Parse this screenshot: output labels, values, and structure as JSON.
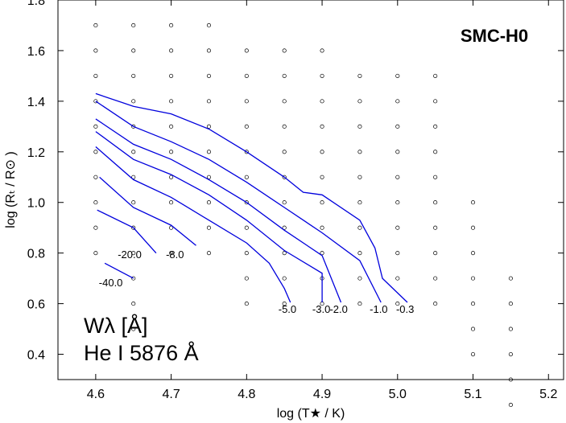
{
  "chart_data": {
    "type": "line",
    "title": "SMC-H0",
    "xlabel": "log (T★ / K)",
    "ylabel": "log (Rₜ / R⊙ )",
    "xlim": [
      4.55,
      5.22
    ],
    "ylim": [
      0.3,
      1.8
    ],
    "xticks": [
      "4.6",
      "4.7",
      "4.8",
      "4.9",
      "5.0",
      "5.1",
      "5.2"
    ],
    "yticks": [
      "0.4",
      "0.6",
      "0.8",
      "1.0",
      "1.2",
      "1.4",
      "1.6",
      "1.8"
    ],
    "legend_line1": "Wλ  [Å]",
    "legend_line2": "He I 5876 Å",
    "grid_points": [
      [
        4.6,
        1.7
      ],
      [
        4.65,
        1.7
      ],
      [
        4.7,
        1.7
      ],
      [
        4.75,
        1.7
      ],
      [
        4.6,
        1.6
      ],
      [
        4.65,
        1.6
      ],
      [
        4.7,
        1.6
      ],
      [
        4.75,
        1.6
      ],
      [
        4.8,
        1.6
      ],
      [
        4.85,
        1.6
      ],
      [
        4.9,
        1.6
      ],
      [
        4.6,
        1.5
      ],
      [
        4.65,
        1.5
      ],
      [
        4.7,
        1.5
      ],
      [
        4.75,
        1.5
      ],
      [
        4.8,
        1.5
      ],
      [
        4.85,
        1.5
      ],
      [
        4.9,
        1.5
      ],
      [
        4.95,
        1.5
      ],
      [
        5.0,
        1.5
      ],
      [
        5.05,
        1.5
      ],
      [
        4.6,
        1.4
      ],
      [
        4.65,
        1.4
      ],
      [
        4.7,
        1.4
      ],
      [
        4.75,
        1.4
      ],
      [
        4.8,
        1.4
      ],
      [
        4.85,
        1.4
      ],
      [
        4.9,
        1.4
      ],
      [
        4.95,
        1.4
      ],
      [
        5.0,
        1.4
      ],
      [
        5.05,
        1.4
      ],
      [
        4.6,
        1.3
      ],
      [
        4.65,
        1.3
      ],
      [
        4.7,
        1.3
      ],
      [
        4.75,
        1.3
      ],
      [
        4.8,
        1.3
      ],
      [
        4.85,
        1.3
      ],
      [
        4.9,
        1.3
      ],
      [
        4.95,
        1.3
      ],
      [
        5.0,
        1.3
      ],
      [
        5.05,
        1.3
      ],
      [
        4.6,
        1.2
      ],
      [
        4.65,
        1.2
      ],
      [
        4.7,
        1.2
      ],
      [
        4.75,
        1.2
      ],
      [
        4.8,
        1.2
      ],
      [
        4.85,
        1.2
      ],
      [
        4.9,
        1.2
      ],
      [
        4.95,
        1.2
      ],
      [
        5.0,
        1.2
      ],
      [
        5.05,
        1.2
      ],
      [
        4.6,
        1.1
      ],
      [
        4.65,
        1.1
      ],
      [
        4.7,
        1.1
      ],
      [
        4.75,
        1.1
      ],
      [
        4.8,
        1.1
      ],
      [
        4.85,
        1.1
      ],
      [
        4.9,
        1.1
      ],
      [
        4.95,
        1.1
      ],
      [
        5.0,
        1.1
      ],
      [
        5.05,
        1.1
      ],
      [
        4.6,
        1.0
      ],
      [
        4.65,
        1.0
      ],
      [
        4.7,
        1.0
      ],
      [
        4.75,
        1.0
      ],
      [
        4.8,
        1.0
      ],
      [
        4.85,
        1.0
      ],
      [
        4.9,
        1.0
      ],
      [
        4.95,
        1.0
      ],
      [
        5.0,
        1.0
      ],
      [
        5.05,
        1.0
      ],
      [
        5.1,
        1.0
      ],
      [
        4.6,
        0.9
      ],
      [
        4.65,
        0.9
      ],
      [
        4.7,
        0.9
      ],
      [
        4.75,
        0.9
      ],
      [
        4.8,
        0.9
      ],
      [
        4.85,
        0.9
      ],
      [
        4.9,
        0.9
      ],
      [
        4.95,
        0.9
      ],
      [
        5.0,
        0.9
      ],
      [
        5.05,
        0.9
      ],
      [
        5.1,
        0.9
      ],
      [
        4.6,
        0.8
      ],
      [
        4.65,
        0.8
      ],
      [
        4.7,
        0.8
      ],
      [
        4.75,
        0.8
      ],
      [
        4.8,
        0.8
      ],
      [
        4.85,
        0.8
      ],
      [
        4.9,
        0.8
      ],
      [
        4.95,
        0.8
      ],
      [
        5.0,
        0.8
      ],
      [
        5.05,
        0.8
      ],
      [
        5.1,
        0.8
      ],
      [
        4.65,
        0.7
      ],
      [
        4.8,
        0.7
      ],
      [
        4.85,
        0.7
      ],
      [
        4.9,
        0.7
      ],
      [
        4.95,
        0.7
      ],
      [
        5.0,
        0.7
      ],
      [
        5.05,
        0.7
      ],
      [
        5.1,
        0.7
      ],
      [
        5.15,
        0.7
      ],
      [
        4.65,
        0.6
      ],
      [
        4.8,
        0.6
      ],
      [
        4.85,
        0.6
      ],
      [
        4.9,
        0.6
      ],
      [
        4.95,
        0.6
      ],
      [
        5.0,
        0.6
      ],
      [
        5.05,
        0.6
      ],
      [
        5.1,
        0.6
      ],
      [
        5.15,
        0.6
      ],
      [
        4.65,
        0.5
      ],
      [
        5.1,
        0.5
      ],
      [
        5.15,
        0.5
      ],
      [
        5.1,
        0.4
      ],
      [
        5.15,
        0.4
      ],
      [
        5.15,
        0.3
      ],
      [
        5.15,
        0.2
      ]
    ],
    "series": [
      {
        "name": "-0.3",
        "label_at": [
          5.01,
          0.58
        ],
        "points": [
          [
            4.6,
            1.43
          ],
          [
            4.65,
            1.38
          ],
          [
            4.7,
            1.35
          ],
          [
            4.75,
            1.29
          ],
          [
            4.8,
            1.2
          ],
          [
            4.85,
            1.1
          ],
          [
            4.875,
            1.04
          ],
          [
            4.9,
            1.03
          ],
          [
            4.95,
            0.93
          ],
          [
            4.97,
            0.82
          ],
          [
            4.98,
            0.7
          ],
          [
            5.013,
            0.605
          ]
        ]
      },
      {
        "name": "-1.0",
        "label_at": [
          4.975,
          0.58
        ],
        "points": [
          [
            4.6,
            1.4
          ],
          [
            4.65,
            1.3
          ],
          [
            4.7,
            1.24
          ],
          [
            4.75,
            1.17
          ],
          [
            4.8,
            1.08
          ],
          [
            4.85,
            0.98
          ],
          [
            4.9,
            0.88
          ],
          [
            4.95,
            0.77
          ],
          [
            4.978,
            0.605
          ]
        ]
      },
      {
        "name": "-2.0",
        "label_at": [
          4.922,
          0.58
        ],
        "points": [
          [
            4.6,
            1.33
          ],
          [
            4.65,
            1.23
          ],
          [
            4.7,
            1.17
          ],
          [
            4.75,
            1.09
          ],
          [
            4.8,
            1.0
          ],
          [
            4.85,
            0.89
          ],
          [
            4.9,
            0.79
          ],
          [
            4.925,
            0.605
          ]
        ]
      },
      {
        "name": "-3.0",
        "label_at": [
          4.899,
          0.58
        ],
        "points": [
          [
            4.6,
            1.28
          ],
          [
            4.65,
            1.17
          ],
          [
            4.7,
            1.11
          ],
          [
            4.75,
            1.03
          ],
          [
            4.8,
            0.93
          ],
          [
            4.85,
            0.81
          ],
          [
            4.9,
            0.72
          ],
          [
            4.9,
            0.605
          ]
        ]
      },
      {
        "name": "-5.0",
        "label_at": [
          4.854,
          0.58
        ],
        "points": [
          [
            4.6,
            1.22
          ],
          [
            4.65,
            1.09
          ],
          [
            4.7,
            1.02
          ],
          [
            4.75,
            0.93
          ],
          [
            4.8,
            0.84
          ],
          [
            4.83,
            0.76
          ],
          [
            4.85,
            0.66
          ],
          [
            4.858,
            0.605
          ]
        ]
      },
      {
        "name": "-8.0",
        "label_at": [
          4.705,
          0.795
        ],
        "points": [
          [
            4.605,
            1.1
          ],
          [
            4.65,
            0.98
          ],
          [
            4.7,
            0.91
          ],
          [
            4.733,
            0.83
          ]
        ]
      },
      {
        "name": "-20.0",
        "label_at": [
          4.645,
          0.795
        ],
        "points": [
          [
            4.602,
            0.97
          ],
          [
            4.65,
            0.9
          ],
          [
            4.68,
            0.8
          ]
        ]
      },
      {
        "name": "-40.0",
        "label_at": [
          4.62,
          0.685
        ],
        "points": [
          [
            4.612,
            0.76
          ],
          [
            4.65,
            0.7
          ]
        ]
      }
    ]
  }
}
